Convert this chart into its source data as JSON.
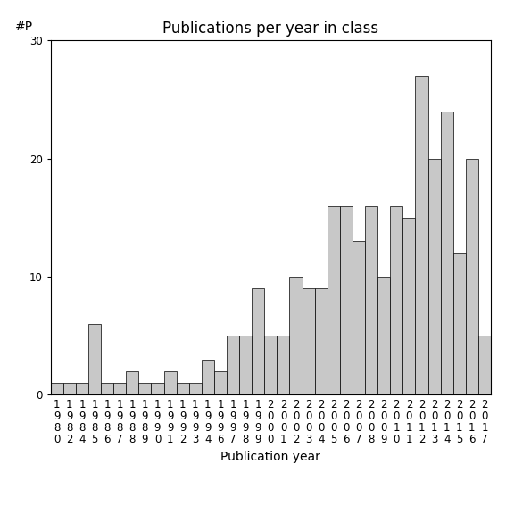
{
  "title": "Publications per year in class",
  "xlabel": "Publication year",
  "ylabel": "#P",
  "years": [
    1980,
    1982,
    1984,
    1985,
    1986,
    1987,
    1988,
    1989,
    1990,
    1991,
    1992,
    1993,
    1994,
    1996,
    1997,
    1998,
    1999,
    2000,
    2001,
    2002,
    2003,
    2004,
    2005,
    2006,
    2007,
    2008,
    2009,
    2010,
    2011,
    2012,
    2013,
    2014,
    2015,
    2016,
    2017
  ],
  "values": [
    1,
    1,
    1,
    6,
    1,
    1,
    2,
    1,
    1,
    2,
    1,
    1,
    3,
    2,
    5,
    5,
    9,
    5,
    5,
    10,
    9,
    9,
    16,
    16,
    13,
    16,
    10,
    16,
    15,
    27,
    20,
    24,
    12,
    20,
    5
  ],
  "bar_color": "#c8c8c8",
  "bar_edgecolor": "#000000",
  "ylim": [
    0,
    30
  ],
  "yticks": [
    0,
    10,
    20,
    30
  ],
  "background_color": "#ffffff",
  "title_fontsize": 12,
  "axis_fontsize": 10,
  "tick_fontsize": 8.5
}
